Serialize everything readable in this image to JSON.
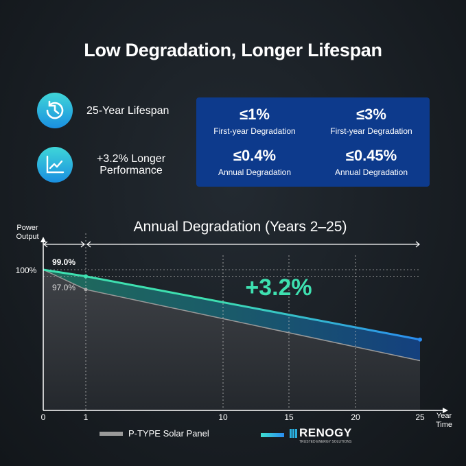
{
  "title": "Low Degradation, Longer Lifespan",
  "features": [
    {
      "icon": "clock-history-icon",
      "label": "25-Year Lifespan"
    },
    {
      "icon": "line-chart-icon",
      "label": "+3.2% Longer Performance"
    }
  ],
  "stats": [
    {
      "value": "≤1%",
      "label": "First-year Degradation"
    },
    {
      "value": "≤3%",
      "label": "First-year Degradation"
    },
    {
      "value": "≤0.4%",
      "label": "Annual Degradation"
    },
    {
      "value": "≤0.45%",
      "label": "Annual Degradation"
    }
  ],
  "colors": {
    "box": "#0d3a8c",
    "renogy_start": "#3ee0b0",
    "renogy_end": "#2a8cf0",
    "ptype": "#9a9a9a",
    "highlight": "#3ee0b0"
  },
  "chart_data": {
    "type": "line",
    "title": "Annual Degradation (Years 2–25)",
    "ylabel": "Power Output",
    "xlabel": "Year Time",
    "x_ticks": [
      0,
      1,
      10,
      15,
      20,
      25
    ],
    "y_tick_label": "100%",
    "annotation": "+3.2%",
    "point_labels": [
      "99.0%",
      "97.0%"
    ],
    "series": [
      {
        "name": "RENOGY",
        "x": [
          0,
          1,
          25
        ],
        "values": [
          100,
          99.0,
          89.4
        ]
      },
      {
        "name": "P-TYPE Solar Panel",
        "x": [
          0,
          1,
          25
        ],
        "values": [
          100,
          97.0,
          86.2
        ]
      }
    ],
    "legend": {
      "ptype": "P-TYPE Solar Panel",
      "brand": "RENOGY",
      "brand_tagline": "TRUSTED ENERGY SOLUTIONS"
    },
    "legend_placement": "bottom"
  }
}
